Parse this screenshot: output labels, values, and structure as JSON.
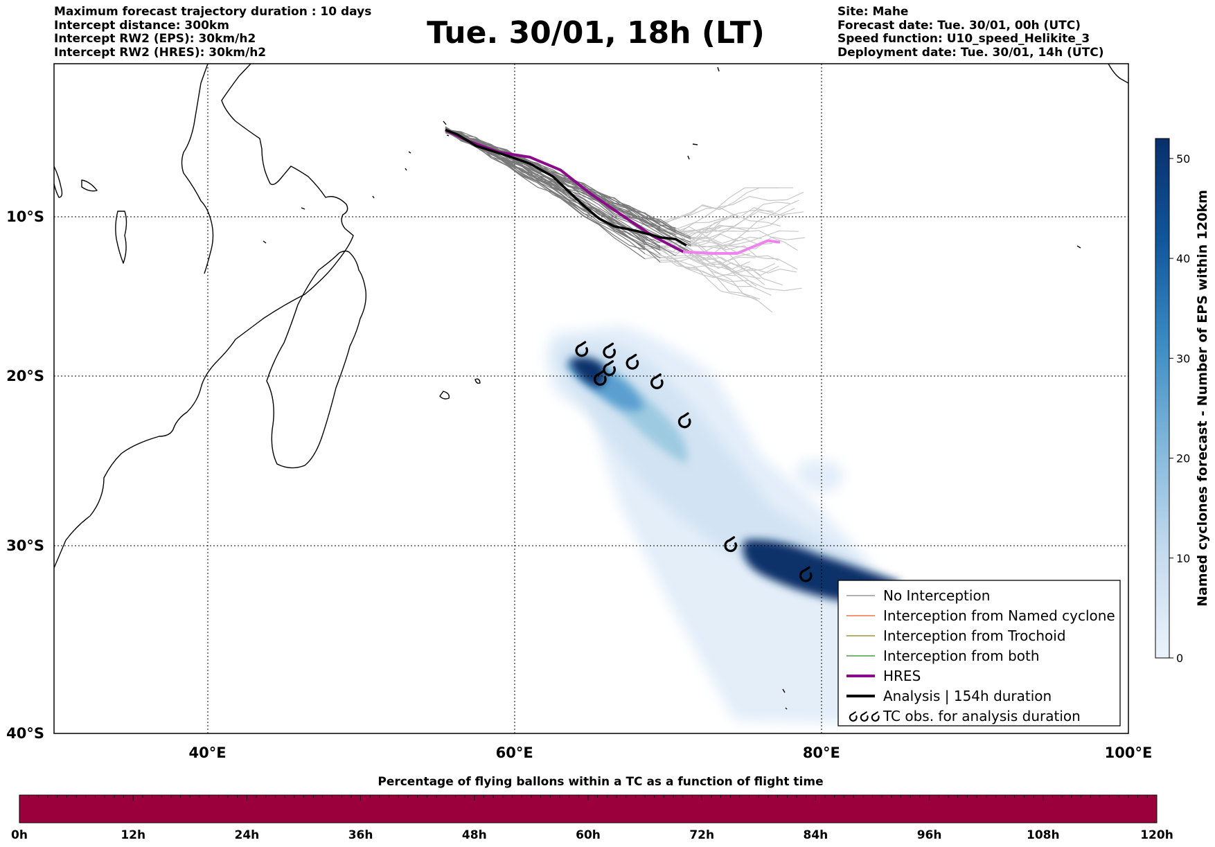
{
  "header": {
    "left_lines": [
      "Maximum forecast trajectory duration : 10 days",
      "Intercept distance: 300km",
      "Intercept RW2 (EPS):  30km/h2",
      "Intercept RW2 (HRES): 30km/h2"
    ],
    "title": "Tue. 30/01, 18h (LT)",
    "right_lines": [
      "Site: Mahe",
      "Forecast date: Tue. 30/01, 00h (UTC)",
      "Speed function: U10_speed_Helikite_3",
      "Deployment date: Tue. 30/01, 14h (UTC)"
    ]
  },
  "map": {
    "lon_range": [
      30,
      100
    ],
    "lat_range": [
      -40,
      -0.5
    ],
    "lon_ticks": [
      {
        "value": 40,
        "label": "40°E"
      },
      {
        "value": 60,
        "label": "60°E"
      },
      {
        "value": 80,
        "label": "80°E"
      },
      {
        "value": 100,
        "label": "100°E"
      }
    ],
    "lat_ticks": [
      {
        "value": -10,
        "label": "10°S"
      },
      {
        "value": -20,
        "label": "20°S"
      },
      {
        "value": -30,
        "label": "30°S"
      },
      {
        "value": -40,
        "label": "40°S"
      }
    ],
    "gridlines": "dotted",
    "hres_track": [
      [
        55.5,
        -4.6
      ],
      [
        57,
        -5.3
      ],
      [
        59,
        -6.0
      ],
      [
        61,
        -6.3
      ],
      [
        63,
        -7.1
      ],
      [
        65,
        -8.6
      ],
      [
        67,
        -9.9
      ],
      [
        69,
        -11.2
      ],
      [
        71,
        -12.2
      ],
      [
        73,
        -12.3
      ],
      [
        74.5,
        -12.3
      ],
      [
        75.5,
        -11.9
      ],
      [
        76.5,
        -11.5
      ],
      [
        77.3,
        -11.6
      ]
    ],
    "analysis_track": [
      [
        55.5,
        -4.6
      ],
      [
        56.3,
        -4.9
      ],
      [
        57.5,
        -5.6
      ],
      [
        59.5,
        -6.2
      ],
      [
        61,
        -6.7
      ],
      [
        62.5,
        -7.5
      ],
      [
        63.5,
        -8.4
      ],
      [
        64.5,
        -9.3
      ],
      [
        65.5,
        -10.1
      ],
      [
        66.5,
        -10.6
      ],
      [
        68,
        -10.9
      ],
      [
        69.5,
        -11.3
      ],
      [
        70.5,
        -11.4
      ],
      [
        71.2,
        -11.8
      ]
    ],
    "tc_obs": [
      [
        64.4,
        -18.4
      ],
      [
        66.2,
        -18.5
      ],
      [
        65.6,
        -20.2
      ],
      [
        66.2,
        -19.6
      ],
      [
        67.7,
        -19.2
      ],
      [
        69.3,
        -20.4
      ],
      [
        71.1,
        -22.7
      ],
      [
        74.1,
        -30.0
      ],
      [
        79.0,
        -31.6
      ]
    ],
    "colorbar": {
      "title": "Named cyclones forecast - Number of EPS within 120km",
      "min": 0,
      "max": 52,
      "ticks": [
        0,
        10,
        20,
        30,
        40,
        50
      ]
    },
    "legend": [
      {
        "label": "No Interception",
        "color": "#808080",
        "style": "thin"
      },
      {
        "label": "Interception from Named cyclone",
        "color": "#e8581c",
        "style": "thin"
      },
      {
        "label": "Interception from Trochoid",
        "color": "#8b7d12",
        "style": "thin"
      },
      {
        "label": "Interception from both",
        "color": "#1e8a1e",
        "style": "thin"
      },
      {
        "label": "HRES",
        "color": "#8b0a8b",
        "style": "thick"
      },
      {
        "label": "Analysis | 154h duration",
        "color": "#000000",
        "style": "thick"
      },
      {
        "label": "TC obs. for analysis duration",
        "color": "#000000",
        "style": "symbol"
      }
    ]
  },
  "bottom_bar": {
    "title": "Percentage of flying ballons within a TC as a function of flight time",
    "color": "#9c003c",
    "ticks": [
      "0h",
      "12h",
      "24h",
      "36h",
      "48h",
      "60h",
      "72h",
      "84h",
      "96h",
      "108h",
      "120h"
    ]
  }
}
